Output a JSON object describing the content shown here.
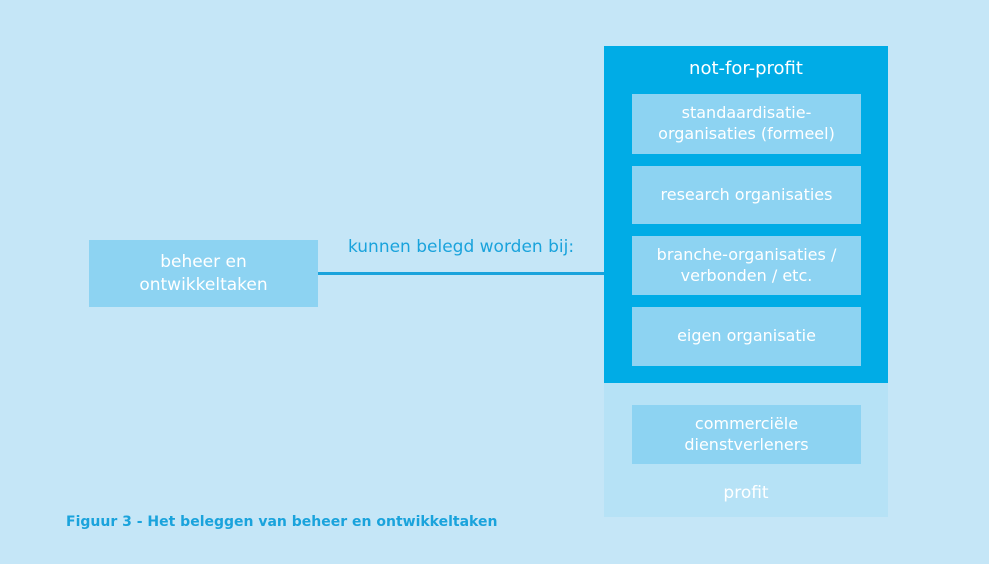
{
  "left_box": {
    "line1": "beheer en",
    "line2": "ontwikkeltaken"
  },
  "connector": {
    "label": "kunnen belegd worden bij:"
  },
  "not_for_profit": {
    "title": "not-for-profit",
    "items": [
      {
        "line1": "standaardisatie-",
        "line2": "organisaties (formeel)"
      },
      {
        "line1": "research organisaties",
        "line2": ""
      },
      {
        "line1": "branche-organisaties /",
        "line2": "verbonden / etc."
      },
      {
        "line1": "eigen organisatie",
        "line2": ""
      }
    ]
  },
  "profit": {
    "title": "profit",
    "item": {
      "line1": "commerciële",
      "line2": "dienstverleners"
    }
  },
  "caption": "Figuur 3 - Het beleggen van beheer en ontwikkeltaken",
  "colors": {
    "background": "#c5e6f7",
    "not_for_profit_panel": "#00ace6",
    "profit_panel": "#b6e2f6",
    "inner_box": "#8dd3f2",
    "accent_text": "#1aa3dc"
  }
}
